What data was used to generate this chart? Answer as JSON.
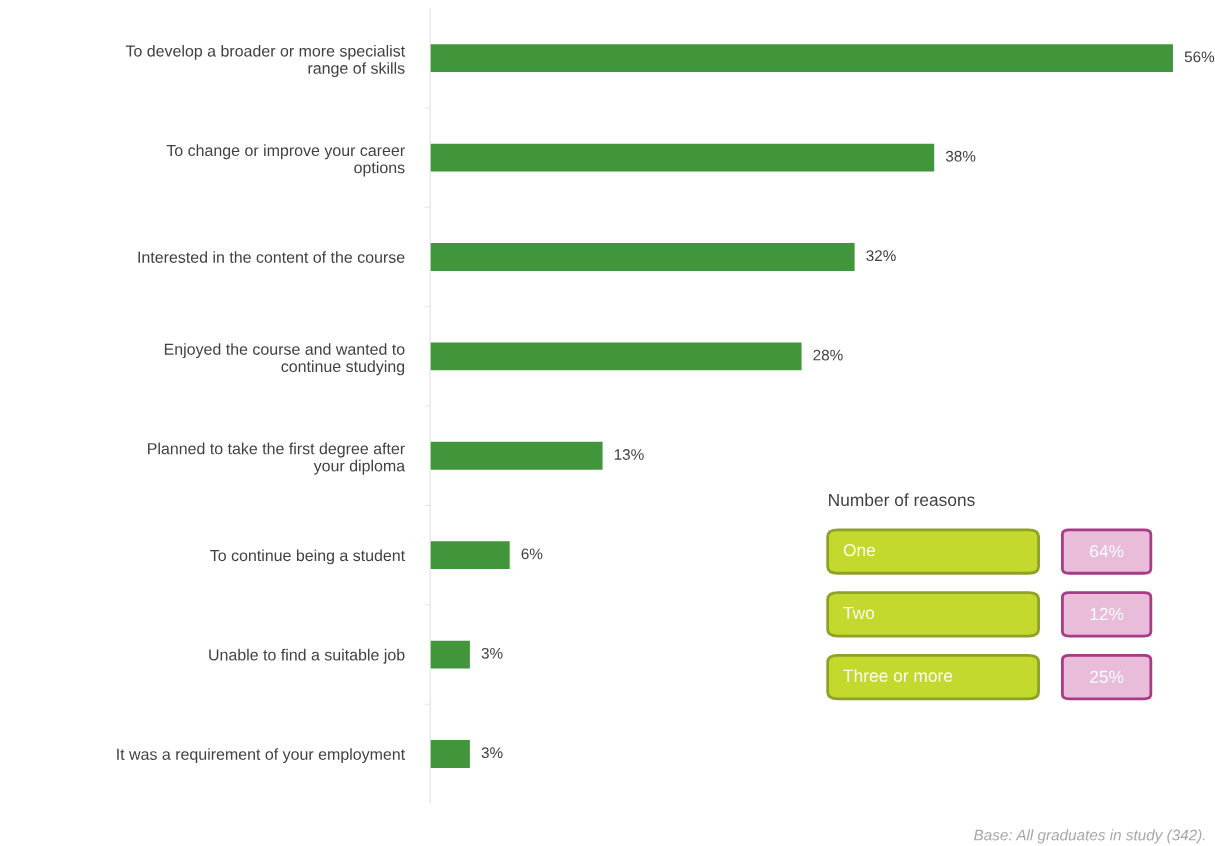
{
  "chart_data": [
    {
      "type": "bar",
      "orientation": "horizontal",
      "categories": [
        "To develop a broader or more specialist\nrange of skills",
        "To change or improve your career\noptions",
        "Interested in the content of the course",
        "Enjoyed the course and wanted to\ncontinue studying",
        "Planned to take the first degree after\nyour diploma",
        "To continue being a student",
        "Unable to find a suitable job",
        "It was a requirement of your employment"
      ],
      "values": [
        56,
        38,
        32,
        28,
        13,
        6,
        3,
        3
      ],
      "value_labels": [
        "56%",
        "38%",
        "32%",
        "28%",
        "13%",
        "6%",
        "3%",
        "3%"
      ],
      "color": "#41963b",
      "tick_labels": "y",
      "grid": false,
      "legend": false,
      "annotations": [
        "Base: All graduates in study (342)."
      ]
    },
    {
      "type": "other",
      "title": "Number of reasons",
      "annotations": [
        "One",
        "64%",
        "Two",
        "12%",
        "Three or more",
        "25%"
      ]
    }
  ]
}
